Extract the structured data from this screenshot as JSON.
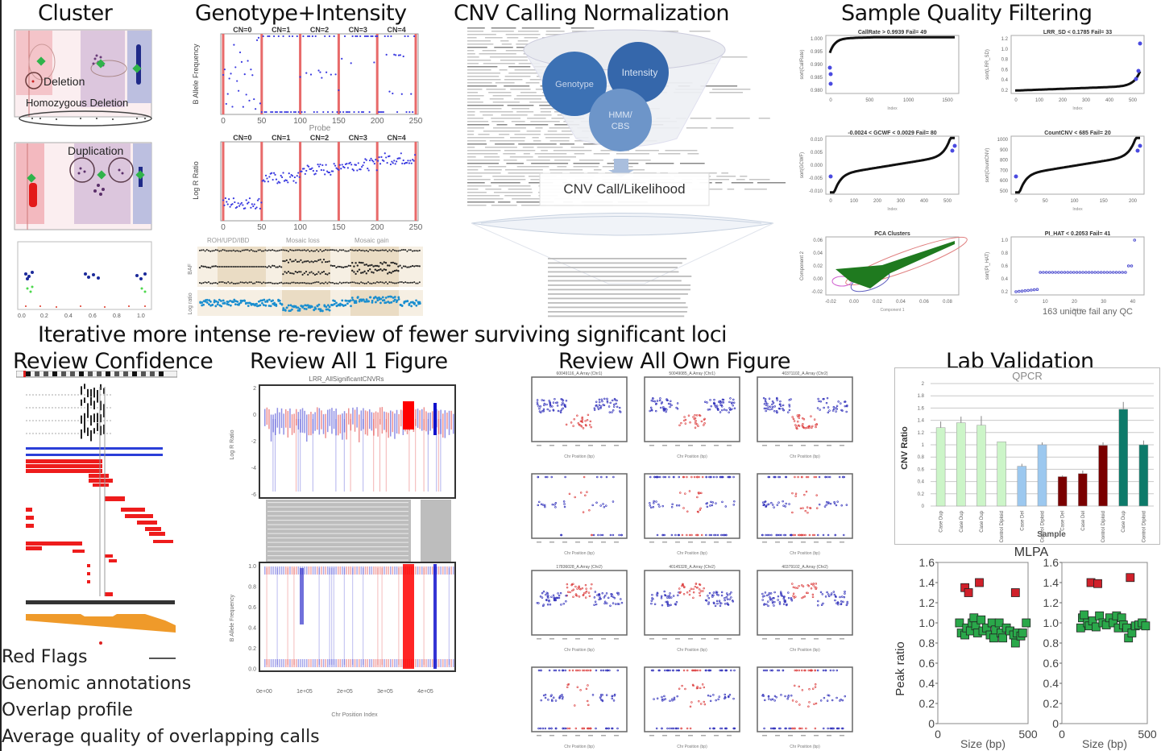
{
  "sections": {
    "cluster": {
      "title": "Cluster",
      "labels": {
        "deletion": "Deletion",
        "homozygous_deletion": "Homozygous Deletion",
        "duplication": "Duplication"
      }
    },
    "genotype_intensity": {
      "title": "Genotype+Intensity",
      "cn_labels": [
        "CN=0",
        "CN=1",
        "CN=2",
        "CN=3",
        "CN=4"
      ],
      "baf_ylabel": "B Allele Frequency",
      "lrr_ylabel": "Log R Ratio",
      "xlabel": "Probe",
      "x_ticks": [
        "0",
        "50",
        "100",
        "150",
        "200",
        "250"
      ],
      "baf_ticks": [
        "0.0",
        "0.2",
        "0.4",
        "0.6",
        "0.8",
        "1.0"
      ],
      "lrr_ticks": [
        "-5",
        "-3",
        "-1",
        "1",
        "2"
      ],
      "bottom_labels": [
        "ROH/UPD/IBD",
        "Mosaic loss",
        "Mosaic gain"
      ],
      "bottom_row_labels": [
        "BAF",
        "Log ratio"
      ]
    },
    "cnv_calling": {
      "title": "CNV Calling Normalization",
      "circles": [
        "Genotype",
        "Intensity",
        "HMM/ CBS"
      ],
      "output_label": "CNV Call/Likelihood"
    },
    "sample_quality": {
      "title": "Sample Quality Filtering",
      "plots": [
        {
          "title": "CallRate > 0.9939 Fail= 49",
          "ylabel": "sort(CallRate)",
          "xlabel": "Index",
          "yticks": [
            "0.980",
            "0.985",
            "0.990",
            "0.995",
            "1.000"
          ],
          "xticks": [
            "0",
            "500",
            "1000",
            "1500"
          ]
        },
        {
          "title": "LRR_SD < 0.1785 Fail= 33",
          "ylabel": "sort(LRR_SD)",
          "xlabel": "Index",
          "yticks": [
            "0.2",
            "0.4",
            "0.6",
            "0.8",
            "1.0",
            "1.2"
          ],
          "xticks": [
            "0",
            "100",
            "200",
            "300",
            "400",
            "500"
          ]
        },
        {
          "title": "-0.0024 < GCWF < 0.0029 Fail= 80",
          "ylabel": "sort(GCWF)",
          "xlabel": "Index",
          "yticks": [
            "-0.010",
            "-0.005",
            "0.000",
            "0.005",
            "0.010"
          ],
          "xticks": [
            "0",
            "100",
            "200",
            "300",
            "400",
            "500"
          ]
        },
        {
          "title": "CountCNV < 685 Fail= 20",
          "ylabel": "sort(CountCNV)",
          "xlabel": "Index",
          "yticks": [
            "500",
            "600",
            "700",
            "800",
            "900",
            "1000"
          ],
          "xticks": [
            "0",
            "50",
            "100",
            "150",
            "200"
          ]
        },
        {
          "title": "PCA Clusters",
          "ylabel": "Component 2",
          "xlabel": "Component 1",
          "yticks": [
            "-0.02",
            "0.00",
            "0.02",
            "0.04",
            "0.06"
          ],
          "xticks": [
            "-0.02",
            "0.00",
            "0.02",
            "0.04",
            "0.06",
            "0.08"
          ]
        },
        {
          "title": "PI_HAT < 0.2053 Fail= 41",
          "ylabel": "sort(PI_HAT)",
          "xlabel": "Index",
          "yticks": [
            "0.2",
            "0.4",
            "0.6",
            "0.8",
            "1.0"
          ],
          "xticks": [
            "0",
            "10",
            "20",
            "30",
            "40"
          ]
        }
      ],
      "summary": "163 unique fail any QC"
    },
    "iterative_banner": "Iterative more intense re-review of fewer surviving significant loci",
    "review_confidence": {
      "title": "Review Confidence",
      "red_flags_label": "Red Flags",
      "flags": [
        "Genomic annotations",
        "Overlap profile",
        "Average quality of overlapping calls"
      ]
    },
    "review_all_1": {
      "title": "Review All 1 Figure",
      "plot_title": "LRR_AllSignificantCNVRs",
      "lrr_ylabel": "Log R Ratio",
      "baf_ylabel": "B Allele Frequency",
      "lrr_ticks": [
        "2",
        "0",
        "-2",
        "-4",
        "-6"
      ],
      "baf_ticks": [
        "1.0",
        "0.8",
        "0.6",
        "0.4",
        "0.2",
        "0.0"
      ],
      "x_ticks": [
        "0e+00",
        "1e+05",
        "2e+05",
        "3e+05",
        "4e+05"
      ],
      "xlabel": "Chr Position Index"
    },
    "review_all_own": {
      "title": "Review All Own Figure",
      "panel_titles": [
        "60049116_A.Array (Chr1)",
        "50049085_A.Array (Chr1)",
        "40371102_A.Array (Chr2)",
        "17836028_A.Array (Chr2)",
        "40145328_A.Array (Chr2)",
        "40379102_A.Array (Chr2)"
      ],
      "xlabel": "Chr Position (bp)"
    },
    "lab_validation": {
      "title": "Lab Validation",
      "qpcr_title": "QPCR",
      "mlpa_title": "MLPA"
    }
  },
  "chart_data": [
    {
      "type": "bar",
      "title": "QPCR",
      "xlabel": "Sample",
      "ylabel": "CNV Ratio",
      "ylim": [
        0,
        2
      ],
      "yticks": [
        "0",
        "0.2",
        "0.4",
        "0.6",
        "0.8",
        "1",
        "1.2",
        "1.4",
        "1.6",
        "1.8",
        "2"
      ],
      "grid": true,
      "categories": [
        "Case Dup",
        "Case Dup",
        "Case Dup",
        "Control Diploid",
        "Case Del",
        "Control Diploid",
        "Case Del",
        "Case Del",
        "Control Diploid",
        "Case Dup",
        "Control Diploid"
      ],
      "values": [
        1.28,
        1.36,
        1.32,
        1.05,
        0.65,
        1.0,
        0.48,
        0.53,
        0.99,
        1.58,
        1.0
      ],
      "errors": [
        0.1,
        0.1,
        0.15,
        0.0,
        0.04,
        0.04,
        0.02,
        0.05,
        0.05,
        0.12,
        0.07
      ],
      "colors": [
        "#ccf5c8",
        "#ccf5c8",
        "#ccf5c8",
        "#ccf5c8",
        "#9cc8ef",
        "#9cc8ef",
        "#7a0000",
        "#7a0000",
        "#7a0000",
        "#0d7a6a",
        "#0d7a6a"
      ]
    },
    {
      "type": "scatter",
      "title": "MLPA",
      "xlabel": "Size (bp)",
      "ylabel": "Peak ratio",
      "xlim": [
        0,
        500
      ],
      "ylim": [
        0,
        1.6
      ],
      "yticks": [
        "0",
        "0.2",
        "0.4",
        "0.6",
        "0.8",
        "1.0",
        "1.2",
        "1.4",
        "1.6"
      ],
      "xticks": [
        "0",
        "500"
      ],
      "panels": [
        {
          "series": [
            {
              "name": "amplified",
              "color": "#d0202a",
              "points": [
                [
                  150,
                  1.35
                ],
                [
                  170,
                  1.3
                ],
                [
                  230,
                  1.4
                ],
                [
                  430,
                  1.3
                ]
              ]
            },
            {
              "name": "normal",
              "color": "#2aa84a",
              "points": [
                [
                  120,
                  1.0
                ],
                [
                  130,
                  0.9
                ],
                [
                  150,
                  0.88
                ],
                [
                  160,
                  0.95
                ],
                [
                  180,
                  0.92
                ],
                [
                  190,
                  1.0
                ],
                [
                  200,
                  1.05
                ],
                [
                  210,
                  0.97
                ],
                [
                  220,
                  0.9
                ],
                [
                  240,
                  1.03
                ],
                [
                  250,
                  0.92
                ],
                [
                  270,
                  0.95
                ],
                [
                  290,
                  0.88
                ],
                [
                  300,
                  1.0
                ],
                [
                  310,
                  0.85
                ],
                [
                  320,
                  0.93
                ],
                [
                  340,
                  1.0
                ],
                [
                  350,
                  0.9
                ],
                [
                  360,
                  0.85
                ],
                [
                  380,
                  0.95
                ],
                [
                  400,
                  0.92
                ],
                [
                  420,
                  0.88
                ],
                [
                  430,
                  0.8
                ],
                [
                  440,
                  0.9
                ],
                [
                  460,
                  0.87
                ],
                [
                  470,
                  0.9
                ],
                [
                  490,
                  1.0
                ]
              ]
            }
          ]
        },
        {
          "series": [
            {
              "name": "amplified",
              "color": "#d0202a",
              "points": [
                [
                  170,
                  1.4
                ],
                [
                  210,
                  1.39
                ],
                [
                  400,
                  1.45
                ]
              ]
            },
            {
              "name": "normal",
              "color": "#2aa84a",
              "points": [
                [
                  110,
                  0.95
                ],
                [
                  120,
                  1.05
                ],
                [
                  130,
                  1.08
                ],
                [
                  150,
                  1.0
                ],
                [
                  160,
                  0.97
                ],
                [
                  180,
                  1.02
                ],
                [
                  200,
                  0.96
                ],
                [
                  220,
                  1.07
                ],
                [
                  240,
                  1.0
                ],
                [
                  260,
                  0.98
                ],
                [
                  280,
                  1.05
                ],
                [
                  300,
                  1.0
                ],
                [
                  320,
                  1.07
                ],
                [
                  330,
                  0.95
                ],
                [
                  350,
                  1.05
                ],
                [
                  360,
                  0.98
                ],
                [
                  380,
                  0.95
                ],
                [
                  390,
                  0.85
                ],
                [
                  410,
                  0.9
                ],
                [
                  430,
                  0.97
                ],
                [
                  450,
                  0.98
                ],
                [
                  470,
                  1.0
                ],
                [
                  490,
                  0.97
                ]
              ]
            }
          ]
        }
      ]
    }
  ]
}
